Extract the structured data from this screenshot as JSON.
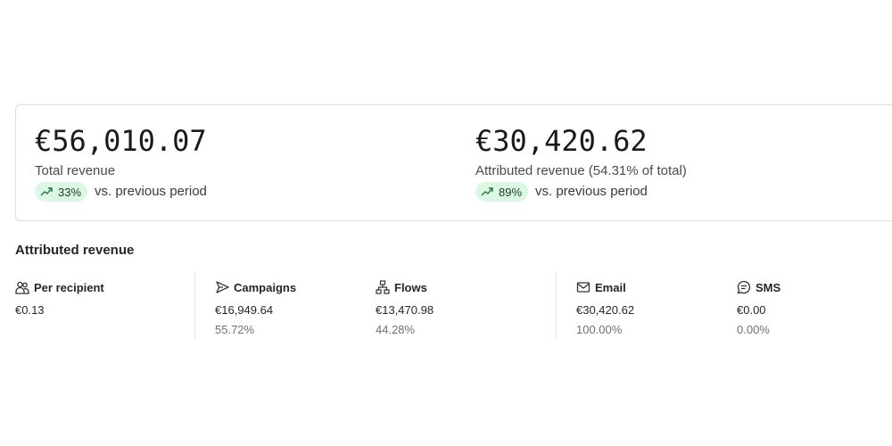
{
  "kpis": [
    {
      "value": "€56,010.07",
      "label": "Total revenue",
      "change": "33%",
      "comparison": "vs. previous period"
    },
    {
      "value": "€30,420.62",
      "label": "Attributed revenue (54.31% of total)",
      "change": "89%",
      "comparison": "vs. previous period"
    }
  ],
  "section": {
    "title": "Attributed revenue",
    "metrics": [
      {
        "label": "Per recipient",
        "value": "€0.13"
      },
      {
        "label": "Campaigns",
        "value": "€16,949.64",
        "share": "55.72%"
      },
      {
        "label": "Flows",
        "value": "€13,470.98",
        "share": "44.28%"
      },
      {
        "label": "Email",
        "value": "€30,420.62",
        "share": "100.00%"
      },
      {
        "label": "SMS",
        "value": "€0.00",
        "share": "0.00%"
      }
    ]
  }
}
